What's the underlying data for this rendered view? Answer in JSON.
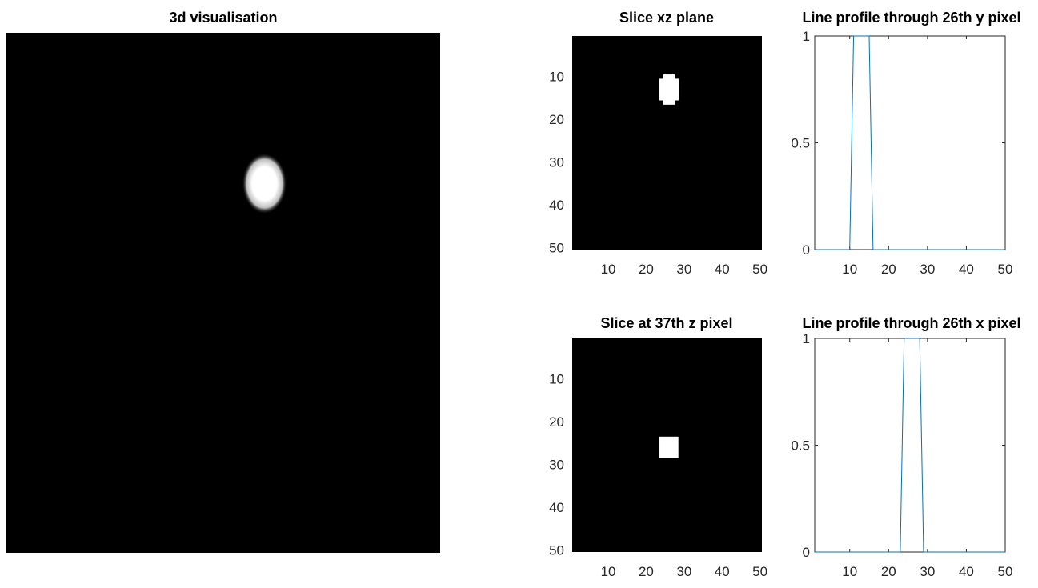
{
  "figure": {
    "background": "#ffffff",
    "image_colormap": "gray",
    "line_color": "#0072bd"
  },
  "chart_data": [
    {
      "id": "vis3d",
      "type": "heatmap",
      "title": "3d visualisation",
      "description_kind": "rendered volume (grayscale)",
      "blob": {
        "center_x_frac": 0.595,
        "center_y_frac": 0.29,
        "appearance": "white blurred sphere"
      }
    },
    {
      "id": "xz",
      "type": "heatmap",
      "title": "Slice xz plane",
      "xlim": [
        0.5,
        50.5
      ],
      "ylim": [
        0.5,
        50.5
      ],
      "xticks": [
        10,
        20,
        30,
        40,
        50
      ],
      "yticks": [
        10,
        20,
        30,
        40,
        50
      ],
      "y_direction": "reverse",
      "white_cells": [
        [
          25,
          10
        ],
        [
          26,
          10
        ],
        [
          27,
          10
        ],
        [
          24,
          11
        ],
        [
          25,
          11
        ],
        [
          26,
          11
        ],
        [
          27,
          11
        ],
        [
          28,
          11
        ],
        [
          24,
          12
        ],
        [
          25,
          12
        ],
        [
          26,
          12
        ],
        [
          27,
          12
        ],
        [
          28,
          12
        ],
        [
          24,
          13
        ],
        [
          25,
          13
        ],
        [
          26,
          13
        ],
        [
          27,
          13
        ],
        [
          28,
          13
        ],
        [
          24,
          14
        ],
        [
          25,
          14
        ],
        [
          26,
          14
        ],
        [
          27,
          14
        ],
        [
          28,
          14
        ],
        [
          24,
          15
        ],
        [
          25,
          15
        ],
        [
          26,
          15
        ],
        [
          27,
          15
        ],
        [
          28,
          15
        ],
        [
          25,
          16
        ],
        [
          26,
          16
        ],
        [
          27,
          16
        ]
      ]
    },
    {
      "id": "profile_y",
      "type": "line",
      "title": "Line profile through 26th y pixel",
      "xlim": [
        1,
        50
      ],
      "ylim": [
        0,
        1
      ],
      "xticks": [
        10,
        20,
        30,
        40,
        50
      ],
      "yticks": [
        0,
        0.5,
        1
      ],
      "ytick_labels": [
        "0",
        "0.5",
        "1"
      ],
      "x": [
        1,
        10,
        11,
        15,
        16,
        50
      ],
      "y": [
        0,
        0,
        1,
        1,
        0,
        0
      ]
    },
    {
      "id": "z37",
      "type": "heatmap",
      "title": "Slice at 37th z pixel",
      "xlim": [
        0.5,
        50.5
      ],
      "ylim": [
        0.5,
        50.5
      ],
      "xticks": [
        10,
        20,
        30,
        40,
        50
      ],
      "yticks": [
        10,
        20,
        30,
        40,
        50
      ],
      "y_direction": "reverse",
      "white_rect": {
        "x_from": 24,
        "x_to": 28,
        "y_from": 24,
        "y_to": 28
      }
    },
    {
      "id": "profile_x",
      "type": "line",
      "title": "Line profile through 26th x pixel",
      "xlim": [
        1,
        50
      ],
      "ylim": [
        0,
        1
      ],
      "xticks": [
        10,
        20,
        30,
        40,
        50
      ],
      "yticks": [
        0,
        0.5,
        1
      ],
      "ytick_labels": [
        "0",
        "0.5",
        "1"
      ],
      "x": [
        1,
        23,
        24,
        28,
        29,
        50
      ],
      "y": [
        0,
        0,
        1,
        1,
        0,
        0
      ]
    }
  ]
}
